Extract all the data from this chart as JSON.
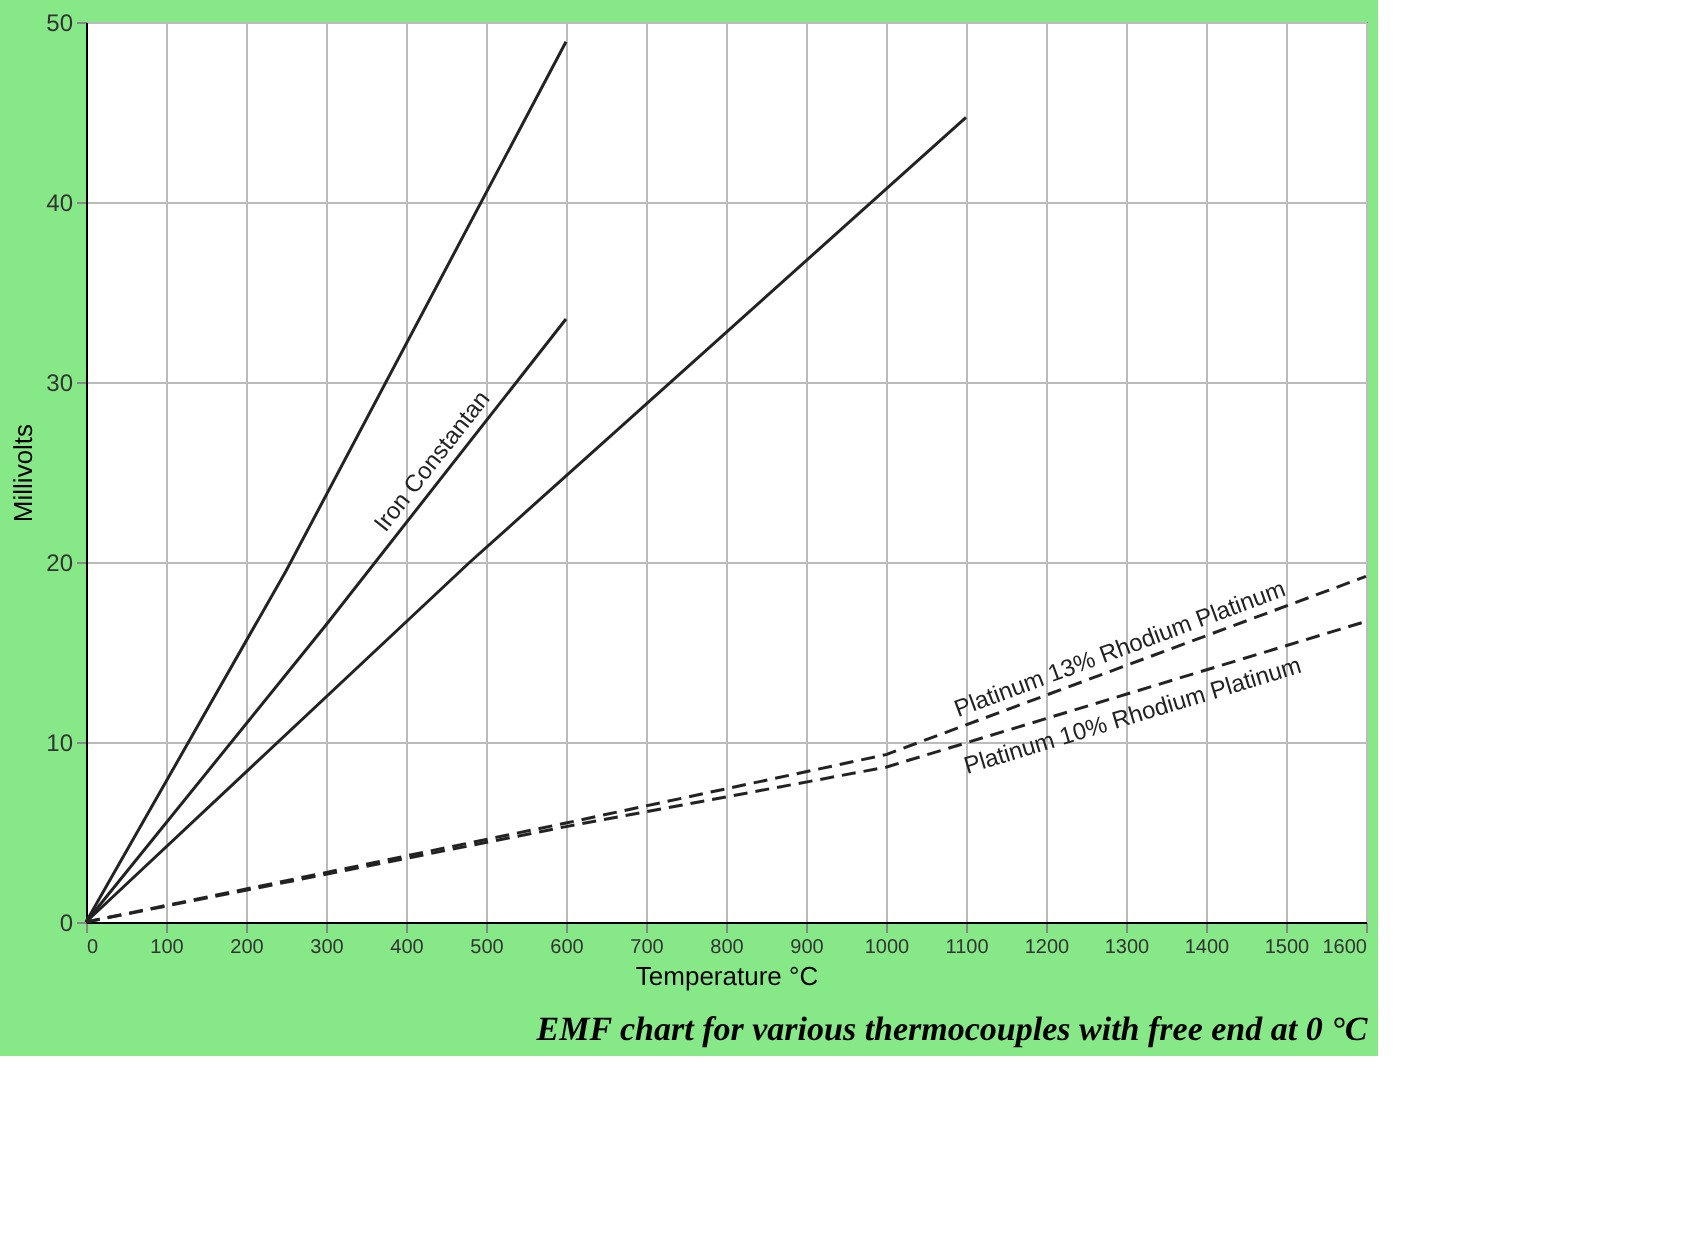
{
  "chart_data": {
    "type": "line",
    "xlabel": "Temperature °C",
    "ylabel": "Millivolts",
    "annotations": [
      "EMF chart for various thermocouples with free end at 0 °C"
    ],
    "xlim": [
      0,
      1600
    ],
    "xticks": [
      0,
      100,
      200,
      300,
      400,
      500,
      600,
      700,
      800,
      900,
      1000,
      1100,
      1200,
      1300,
      1400,
      1500,
      1600
    ],
    "ylim": [
      0,
      50
    ],
    "yticks": [
      0,
      10,
      20,
      30,
      40,
      50
    ],
    "grid": true,
    "series": [
      {
        "color": "#222222",
        "x": [
          0,
          250,
          600
        ],
        "values": [
          0,
          19.5,
          48.9
        ]
      },
      {
        "name": "Iron Constantan",
        "color": "#222222",
        "x": [
          0,
          300,
          600
        ],
        "values": [
          0,
          16.5,
          33.5
        ]
      },
      {
        "color": "#222222",
        "x": [
          0,
          480,
          1100
        ],
        "values": [
          0,
          20,
          44.7
        ]
      },
      {
        "name": "Platinum 13% Rhodium Platinum",
        "color": "#222222",
        "line_style": "dashed",
        "x": [
          0,
          600,
          1000,
          1600
        ],
        "values": [
          0,
          5.5,
          9.3,
          19.2
        ]
      },
      {
        "name": "Platinum 10% Rhodium Platinum",
        "color": "#222222",
        "line_style": "dashed",
        "x": [
          0,
          600,
          1000,
          1600
        ],
        "values": [
          0,
          5.3,
          8.6,
          16.7
        ]
      }
    ]
  }
}
